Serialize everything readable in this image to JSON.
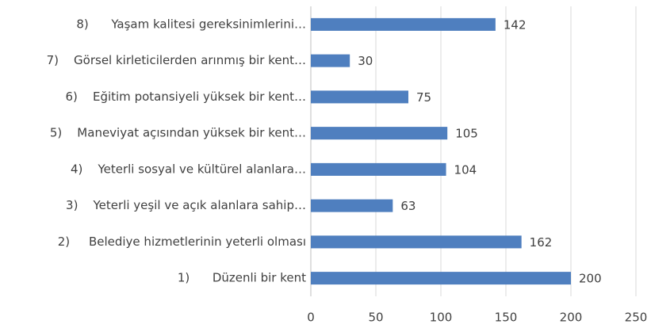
{
  "chart_data": {
    "type": "bar",
    "orientation": "horizontal",
    "categories": [
      "8)      Yaşam kalitesi gereksinimlerini…",
      "7)    Görsel kirleticilerden arınmış bir kent…",
      "6)    Eğitim potansiyeli yüksek bir kent…",
      "5)    Maneviyat açısından yüksek bir kent…",
      "4)    Yeterli sosyal ve kültürel alanlara…",
      "3)    Yeterli yeşil ve açık alanlara sahip…",
      "2)     Belediye hizmetlerinin yeterli olması",
      "1)      Düzenli bir kent"
    ],
    "values": [
      142,
      30,
      75,
      105,
      104,
      63,
      162,
      200
    ],
    "color": "#4f7fbf",
    "xlim": [
      0,
      250
    ],
    "xticks": [
      0,
      50,
      100,
      150,
      200,
      250
    ],
    "grid": true
  }
}
